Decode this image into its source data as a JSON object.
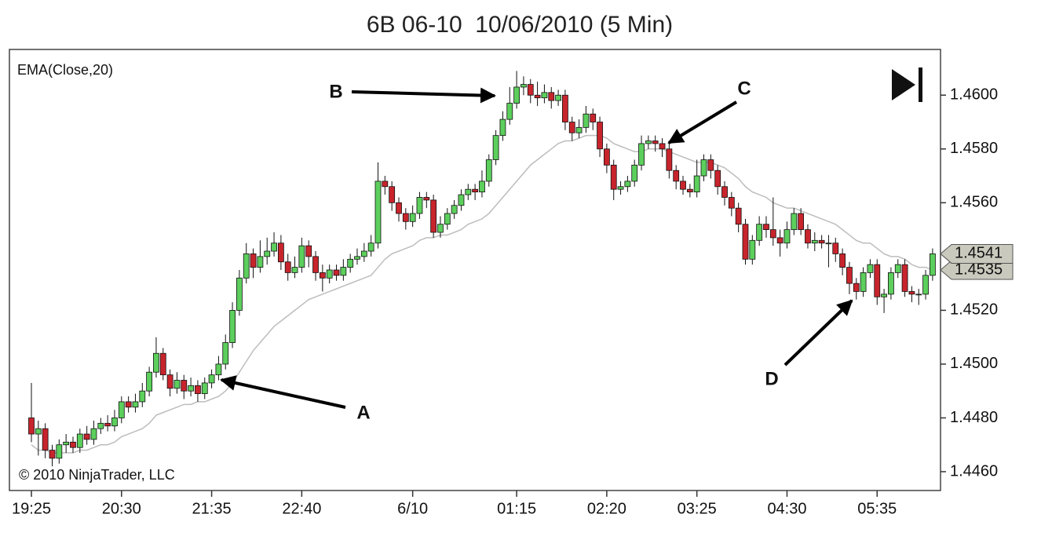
{
  "chart_data": {
    "type": "candlestick",
    "title": "6B 06-10  10/06/2010 (5 Min)",
    "copyright": "© 2010 NinjaTrader, LLC",
    "annotations": [
      {
        "text": "A"
      },
      {
        "text": "B"
      },
      {
        "text": "C"
      },
      {
        "text": "D"
      }
    ],
    "categories": [
      "19:25",
      null,
      null,
      null,
      null,
      null,
      null,
      null,
      null,
      null,
      null,
      null,
      null,
      "20:30",
      null,
      null,
      null,
      null,
      null,
      null,
      null,
      null,
      null,
      null,
      null,
      null,
      "21:35",
      null,
      null,
      null,
      null,
      null,
      null,
      null,
      null,
      null,
      null,
      null,
      null,
      "22:40",
      null,
      null,
      null,
      null,
      null,
      null,
      null,
      null,
      null,
      null,
      null,
      null,
      null,
      null,
      null,
      "6/10",
      null,
      null,
      null,
      null,
      null,
      null,
      null,
      null,
      null,
      null,
      null,
      null,
      null,
      null,
      "01:15",
      null,
      null,
      null,
      null,
      null,
      null,
      null,
      null,
      null,
      null,
      null,
      null,
      "02:20",
      null,
      null,
      null,
      null,
      null,
      null,
      null,
      null,
      null,
      null,
      null,
      null,
      "03:25",
      null,
      null,
      null,
      null,
      null,
      null,
      null,
      null,
      null,
      null,
      null,
      null,
      "04:30",
      null,
      null,
      null,
      null,
      null,
      null,
      null,
      null,
      null,
      null,
      null,
      null,
      "05:35",
      null,
      null,
      null,
      null,
      null,
      null,
      null,
      null
    ],
    "open": [
      1.448,
      1.4474,
      1.4476,
      1.4468,
      1.4465,
      1.447,
      1.4471,
      1.4469,
      1.4474,
      1.4472,
      1.4476,
      1.4478,
      1.4477,
      1.448,
      1.4486,
      1.4484,
      1.4486,
      1.449,
      1.4497,
      1.4504,
      1.4496,
      1.4491,
      1.4494,
      1.449,
      1.4492,
      1.4489,
      1.4493,
      1.4496,
      1.45,
      1.4508,
      1.452,
      1.4532,
      1.4541,
      1.4536,
      1.454,
      1.4542,
      1.4545,
      1.4538,
      1.4534,
      1.4536,
      1.4544,
      1.454,
      1.4534,
      1.4532,
      1.4535,
      1.4533,
      1.4536,
      1.4539,
      1.454,
      1.4542,
      1.4545,
      1.4568,
      1.4566,
      1.456,
      1.4556,
      1.4553,
      1.4556,
      1.4562,
      1.4561,
      1.4549,
      1.4552,
      1.4556,
      1.4559,
      1.4563,
      1.4565,
      1.4564,
      1.4568,
      1.4576,
      1.4585,
      1.4591,
      1.4597,
      1.4603,
      1.4604,
      1.46,
      1.4599,
      1.4601,
      1.4598,
      1.46,
      1.459,
      1.4586,
      1.4588,
      1.4593,
      1.459,
      1.458,
      1.4574,
      1.4565,
      1.4566,
      1.4568,
      1.4574,
      1.4582,
      1.4583,
      1.4582,
      1.458,
      1.4572,
      1.4568,
      1.4565,
      1.4564,
      1.457,
      1.4576,
      1.4572,
      1.4566,
      1.4562,
      1.4558,
      1.4552,
      1.4539,
      1.4546,
      1.4552,
      1.455,
      1.4547,
      1.4545,
      1.455,
      1.4556,
      1.455,
      1.4545,
      1.4546,
      1.4545,
      1.4545,
      1.4541,
      1.4536,
      1.453,
      1.4527,
      1.4534,
      1.4537,
      1.4525,
      1.4526,
      1.4534,
      1.4537,
      1.4527,
      1.4526,
      1.4526,
      1.4533
    ],
    "high": [
      1.4493,
      1.4479,
      1.4478,
      1.447,
      1.4472,
      1.4474,
      1.4473,
      1.4476,
      1.4477,
      1.4479,
      1.448,
      1.4481,
      1.4483,
      1.4488,
      1.4488,
      1.4489,
      1.4493,
      1.4499,
      1.451,
      1.4506,
      1.4498,
      1.4497,
      1.4496,
      1.4495,
      1.4494,
      1.4495,
      1.4498,
      1.4503,
      1.4511,
      1.4523,
      1.4535,
      1.4545,
      1.4543,
      1.4546,
      1.4547,
      1.4549,
      1.4548,
      1.4541,
      1.454,
      1.4547,
      1.4546,
      1.4542,
      1.4537,
      1.4537,
      1.4537,
      1.4539,
      1.4541,
      1.4543,
      1.4545,
      1.4548,
      1.4575,
      1.457,
      1.4568,
      1.4562,
      1.4558,
      1.4559,
      1.4564,
      1.4564,
      1.4563,
      1.4555,
      1.4558,
      1.4561,
      1.4565,
      1.4567,
      1.4567,
      1.4572,
      1.4578,
      1.4587,
      1.4594,
      1.4603,
      1.4609,
      1.4607,
      1.4606,
      1.4605,
      1.4604,
      1.4603,
      1.4602,
      1.4602,
      1.4592,
      1.4591,
      1.4596,
      1.4595,
      1.4592,
      1.4582,
      1.4576,
      1.4568,
      1.457,
      1.4576,
      1.4585,
      1.4585,
      1.4585,
      1.4584,
      1.4582,
      1.4574,
      1.457,
      1.4567,
      1.4576,
      1.4578,
      1.4578,
      1.4574,
      1.4568,
      1.4564,
      1.456,
      1.4554,
      1.4548,
      1.4555,
      1.4555,
      1.4562,
      1.455,
      1.4553,
      1.4558,
      1.4558,
      1.4552,
      1.4549,
      1.4548,
      1.4548,
      1.4547,
      1.4543,
      1.4538,
      1.4532,
      1.4536,
      1.4539,
      1.4539,
      1.4528,
      1.4536,
      1.4539,
      1.4539,
      1.4529,
      1.4528,
      1.4535,
      1.4543
    ],
    "low": [
      1.4471,
      1.4466,
      1.4465,
      1.4462,
      1.4463,
      1.4467,
      1.4467,
      1.4467,
      1.447,
      1.447,
      1.4474,
      1.4475,
      1.4475,
      1.4478,
      1.4482,
      1.4482,
      1.4484,
      1.4488,
      1.4495,
      1.4494,
      1.4488,
      1.4489,
      1.4487,
      1.4488,
      1.4486,
      1.4487,
      1.4491,
      1.4494,
      1.4498,
      1.4506,
      1.4518,
      1.453,
      1.4532,
      1.4534,
      1.4537,
      1.454,
      1.4535,
      1.4531,
      1.4532,
      1.4534,
      1.4536,
      1.4531,
      1.4527,
      1.453,
      1.4531,
      1.4531,
      1.4534,
      1.4537,
      1.4538,
      1.454,
      1.4543,
      1.4563,
      1.4557,
      1.4553,
      1.455,
      1.4551,
      1.4554,
      1.4558,
      1.4547,
      1.4547,
      1.455,
      1.4554,
      1.4557,
      1.4561,
      1.4561,
      1.4562,
      1.4566,
      1.4574,
      1.4583,
      1.4589,
      1.4595,
      1.46,
      1.4597,
      1.4596,
      1.4597,
      1.4595,
      1.4596,
      1.4587,
      1.4583,
      1.4584,
      1.4586,
      1.4587,
      1.4577,
      1.4571,
      1.4561,
      1.4563,
      1.4564,
      1.4566,
      1.4572,
      1.458,
      1.4579,
      1.4577,
      1.4569,
      1.4565,
      1.4563,
      1.4562,
      1.4562,
      1.4568,
      1.4569,
      1.4563,
      1.4559,
      1.4555,
      1.4549,
      1.4537,
      1.4537,
      1.4544,
      1.4547,
      1.4544,
      1.454,
      1.4543,
      1.4548,
      1.4548,
      1.4543,
      1.4542,
      1.4543,
      1.4536,
      1.4538,
      1.4533,
      1.4526,
      1.4524,
      1.4525,
      1.4532,
      1.4522,
      1.4519,
      1.4524,
      1.4532,
      1.4525,
      1.4523,
      1.4522,
      1.4524,
      1.4531
    ],
    "close": [
      1.4474,
      1.4476,
      1.4468,
      1.4465,
      1.447,
      1.4471,
      1.4469,
      1.4474,
      1.4472,
      1.4476,
      1.4478,
      1.4477,
      1.448,
      1.4486,
      1.4484,
      1.4486,
      1.449,
      1.4497,
      1.4504,
      1.4496,
      1.4491,
      1.4494,
      1.449,
      1.4492,
      1.4489,
      1.4493,
      1.4496,
      1.45,
      1.4508,
      1.452,
      1.4532,
      1.4541,
      1.4536,
      1.454,
      1.4542,
      1.4545,
      1.4538,
      1.4534,
      1.4536,
      1.4544,
      1.454,
      1.4534,
      1.4532,
      1.4535,
      1.4533,
      1.4536,
      1.4539,
      1.454,
      1.4542,
      1.4545,
      1.4568,
      1.4566,
      1.456,
      1.4556,
      1.4553,
      1.4556,
      1.4562,
      1.4561,
      1.4549,
      1.4552,
      1.4556,
      1.4559,
      1.4563,
      1.4565,
      1.4564,
      1.4568,
      1.4576,
      1.4585,
      1.4591,
      1.4597,
      1.4603,
      1.4604,
      1.46,
      1.4599,
      1.4601,
      1.4598,
      1.46,
      1.459,
      1.4586,
      1.4588,
      1.4593,
      1.459,
      1.458,
      1.4574,
      1.4565,
      1.4566,
      1.4568,
      1.4574,
      1.4582,
      1.4583,
      1.4582,
      1.458,
      1.4572,
      1.4568,
      1.4565,
      1.4564,
      1.457,
      1.4576,
      1.4572,
      1.4566,
      1.4562,
      1.4558,
      1.4552,
      1.4539,
      1.4546,
      1.4552,
      1.455,
      1.4547,
      1.4545,
      1.455,
      1.4556,
      1.455,
      1.4545,
      1.4546,
      1.4545,
      1.4545,
      1.4541,
      1.4536,
      1.453,
      1.4527,
      1.4534,
      1.4537,
      1.4525,
      1.4526,
      1.4534,
      1.4537,
      1.4527,
      1.4526,
      1.4526,
      1.4533,
      1.4541
    ],
    "up_color": "#5ccf5c",
    "down_color": "#c8242c",
    "ema": {
      "name": "EMA(Close,20)",
      "color": "#bdbdbd",
      "values": [
        1.447,
        1.4468,
        1.4468,
        1.4467,
        1.4467,
        1.4467,
        1.4467,
        1.4468,
        1.4468,
        1.4469,
        1.447,
        1.447,
        1.4471,
        1.4473,
        1.4474,
        1.4475,
        1.4476,
        1.4478,
        1.4481,
        1.4482,
        1.4483,
        1.4484,
        1.4485,
        1.4485,
        1.4486,
        1.4486,
        1.4487,
        1.4488,
        1.449,
        1.4493,
        1.4497,
        1.4501,
        1.4505,
        1.4508,
        1.4511,
        1.4514,
        1.4516,
        1.4518,
        1.452,
        1.4522,
        1.4524,
        1.4525,
        1.4526,
        1.4527,
        1.4528,
        1.4529,
        1.453,
        1.4531,
        1.4532,
        1.4533,
        1.4536,
        1.4539,
        1.4541,
        1.4542,
        1.4543,
        1.4544,
        1.4546,
        1.4547,
        1.4547,
        1.4548,
        1.4548,
        1.4549,
        1.455,
        1.4552,
        1.4553,
        1.4554,
        1.4556,
        1.4559,
        1.4562,
        1.4565,
        1.4568,
        1.4571,
        1.4574,
        1.4576,
        1.4578,
        1.458,
        1.4582,
        1.4583,
        1.4583,
        1.4584,
        1.4585,
        1.4585,
        1.4585,
        1.4584,
        1.4582,
        1.4581,
        1.458,
        1.4579,
        1.4579,
        1.458,
        1.458,
        1.458,
        1.4579,
        1.4578,
        1.4577,
        1.4576,
        1.4575,
        1.4575,
        1.4575,
        1.4574,
        1.4573,
        1.4571,
        1.4569,
        1.4566,
        1.4564,
        1.4563,
        1.4562,
        1.456,
        1.4559,
        1.4558,
        1.4558,
        1.4557,
        1.4556,
        1.4555,
        1.4554,
        1.4553,
        1.4552,
        1.455,
        1.4548,
        1.4546,
        1.4545,
        1.4545,
        1.4543,
        1.4541,
        1.454,
        1.454,
        1.4539,
        1.4537,
        1.4536,
        1.4536,
        1.4535
      ]
    },
    "ylim": [
      1.4453,
      1.4617
    ],
    "yticks": [
      {
        "value": 1.446,
        "label": "1.4460"
      },
      {
        "value": 1.448,
        "label": "1.4480"
      },
      {
        "value": 1.45,
        "label": "1.4500"
      },
      {
        "value": 1.452,
        "label": "1.4520"
      },
      {
        "value": 1.456,
        "label": "1.4560"
      },
      {
        "value": 1.458,
        "label": "1.4580"
      },
      {
        "value": 1.46,
        "label": "1.4600"
      }
    ]
  }
}
